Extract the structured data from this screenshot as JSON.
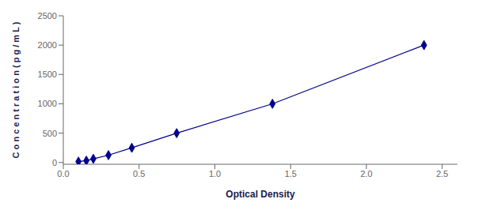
{
  "chart_data": {
    "type": "line",
    "xlabel": "Optical Density",
    "ylabel": "C o n c e n t r a t i o n ( p g / m L )",
    "x": [
      0.1,
      0.152,
      0.198,
      0.298,
      0.452,
      0.748,
      1.38,
      2.38
    ],
    "values": [
      15.6,
      31.25,
      62.5,
      125,
      250,
      500,
      1000,
      2000
    ],
    "color": "#00008B",
    "marker": "diamond",
    "line_style": "solid",
    "grid": false,
    "xlim": [
      0.0,
      2.6
    ],
    "ylim": [
      -30,
      2500
    ],
    "xticks": [
      {
        "value": 0,
        "label": "0.0"
      },
      0.5,
      {
        "value": 1,
        "label": "1.0"
      },
      1.5,
      {
        "value": 2,
        "label": "2.0"
      },
      2.5
    ],
    "yticks": [
      0,
      500,
      1000,
      1500,
      2000,
      2500
    ]
  }
}
